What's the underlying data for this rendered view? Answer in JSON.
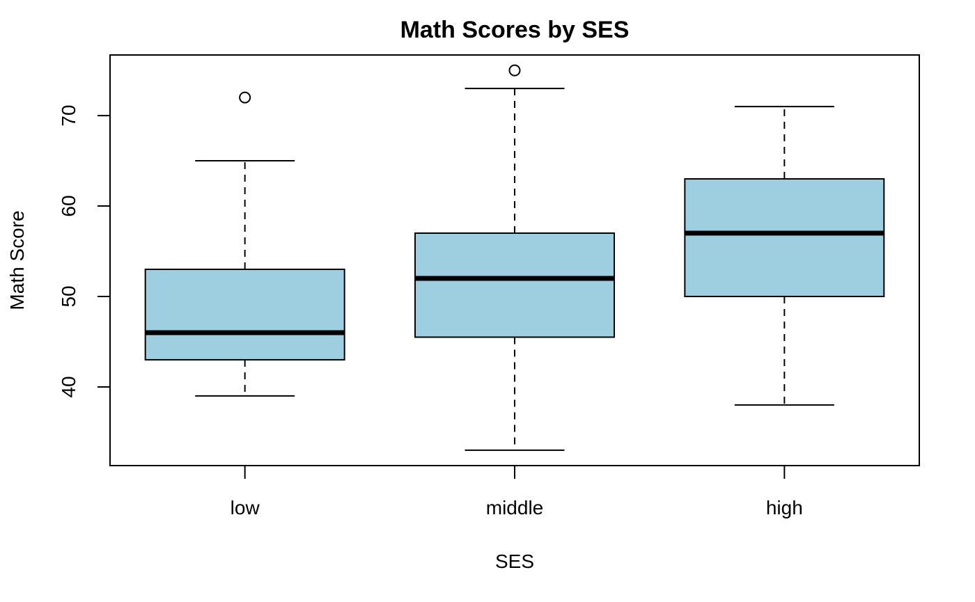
{
  "chart_data": {
    "type": "boxplot",
    "title": "Math Scores by SES",
    "xlabel": "SES",
    "ylabel": "Math Score",
    "categories": [
      "low",
      "middle",
      "high"
    ],
    "yticks": [
      40,
      50,
      60,
      70
    ],
    "ylim": [
      31.3,
      76.7
    ],
    "grid": false,
    "box_color": "#9ECFE0",
    "line_color": "#000000",
    "boxes": [
      {
        "category": "low",
        "whisker_low": 39,
        "q1": 43,
        "median": 46,
        "q3": 53,
        "whisker_high": 65,
        "outliers": [
          72
        ]
      },
      {
        "category": "middle",
        "whisker_low": 33,
        "q1": 45.5,
        "median": 52,
        "q3": 57,
        "whisker_high": 73,
        "outliers": [
          75
        ]
      },
      {
        "category": "high",
        "whisker_low": 38,
        "q1": 50,
        "median": 57,
        "q3": 63,
        "whisker_high": 71,
        "outliers": []
      }
    ]
  }
}
